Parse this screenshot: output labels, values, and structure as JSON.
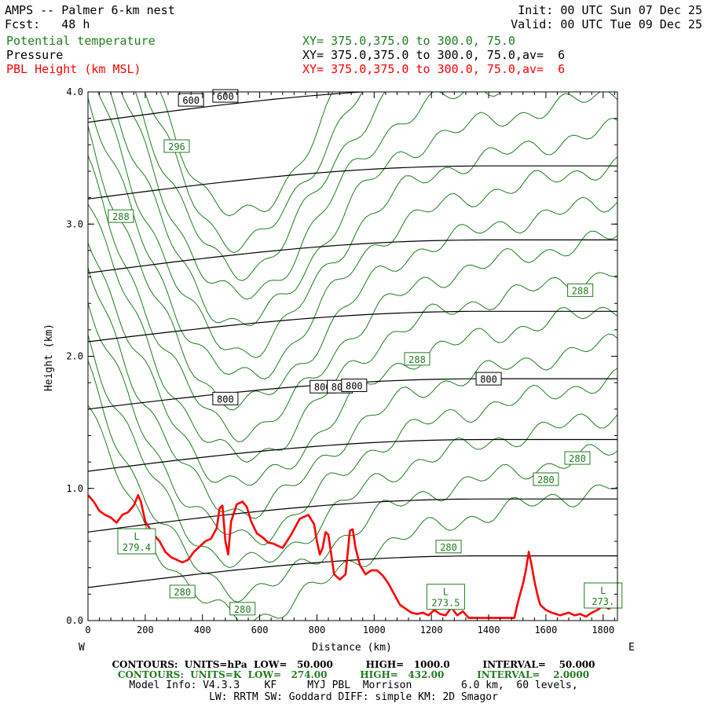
{
  "header": {
    "title": "AMPS -- Palmer 6-km nest",
    "fcst": "Fcst:   48 h",
    "init": "Init: 00 UTC Sun 07 Dec 25",
    "valid": "Valid: 00 UTC Tue 09 Dec 25",
    "fields": [
      {
        "name": "Potential temperature",
        "xy": "XY= 375.0,375.0 to 300.0, 75.0",
        "color": "#1e7d1e"
      },
      {
        "name": "Pressure",
        "xy": "XY= 375.0,375.0 to 300.0, 75.0,av=  6",
        "color": "#000000"
      },
      {
        "name": "PBL Height (km MSL)",
        "xy": "XY= 375.0,375.0 to 300.0, 75.0,av=  6",
        "color": "#ff0000"
      }
    ]
  },
  "chart_data": {
    "type": "line",
    "title": "AMPS -- Palmer 6-km nest",
    "xlabel": "Distance (km)",
    "ylabel": "Height (km)",
    "xlim": [
      0,
      1850
    ],
    "ylim": [
      0,
      4.0
    ],
    "x_ticks": [
      0,
      200,
      400,
      600,
      800,
      1000,
      1200,
      1400,
      1600,
      1800
    ],
    "x_tick_labels": [
      "0",
      "200",
      "400",
      "600",
      "800",
      "1000",
      "1200",
      "1400",
      "1600",
      "1800"
    ],
    "y_ticks": [
      0,
      1.0,
      2.0,
      3.0,
      4.0
    ],
    "y_tick_labels": [
      "0.0",
      "1.0",
      "2.0",
      "3.0",
      "4.0"
    ],
    "left_end_label": "W",
    "right_end_label": "E",
    "pbl_height": {
      "name": "PBL Height (km MSL)",
      "color": "#ff0000",
      "x": [
        0,
        20,
        40,
        60,
        80,
        100,
        120,
        140,
        160,
        175,
        185,
        200,
        215,
        230,
        250,
        270,
        290,
        310,
        330,
        350,
        370,
        390,
        410,
        430,
        450,
        460,
        470,
        480,
        490,
        500,
        520,
        540,
        555,
        570,
        590,
        610,
        630,
        650,
        680,
        710,
        740,
        770,
        790,
        800,
        810,
        820,
        830,
        840,
        860,
        880,
        900,
        915,
        925,
        935,
        950,
        970,
        990,
        1010,
        1030,
        1050,
        1070,
        1090,
        1110,
        1130,
        1150,
        1170,
        1190,
        1210,
        1230,
        1250,
        1270,
        1290,
        1310,
        1330,
        1350,
        1380,
        1420,
        1460,
        1490,
        1500,
        1510,
        1520,
        1530,
        1540,
        1550,
        1560,
        1570,
        1580,
        1600,
        1620,
        1650,
        1680,
        1700,
        1720,
        1740,
        1760,
        1780,
        1800,
        1820,
        1840,
        1850
      ],
      "y": [
        0.95,
        0.9,
        0.83,
        0.8,
        0.78,
        0.74,
        0.8,
        0.82,
        0.87,
        0.95,
        0.9,
        0.75,
        0.7,
        0.65,
        0.6,
        0.52,
        0.48,
        0.46,
        0.44,
        0.46,
        0.52,
        0.56,
        0.6,
        0.62,
        0.7,
        0.85,
        0.87,
        0.6,
        0.5,
        0.75,
        0.88,
        0.9,
        0.86,
        0.75,
        0.66,
        0.63,
        0.59,
        0.58,
        0.55,
        0.65,
        0.77,
        0.8,
        0.73,
        0.6,
        0.5,
        0.55,
        0.67,
        0.65,
        0.35,
        0.31,
        0.35,
        0.68,
        0.69,
        0.55,
        0.42,
        0.35,
        0.38,
        0.38,
        0.34,
        0.28,
        0.2,
        0.12,
        0.09,
        0.06,
        0.05,
        0.06,
        0.04,
        0.08,
        0.05,
        0.04,
        0.1,
        0.04,
        0.07,
        0.02,
        0.02,
        0.02,
        0.02,
        0.02,
        0.02,
        0.12,
        0.2,
        0.28,
        0.38,
        0.52,
        0.42,
        0.3,
        0.2,
        0.12,
        0.08,
        0.06,
        0.04,
        0.06,
        0.04,
        0.05,
        0.03,
        0.06,
        0.08,
        0.11,
        0.09,
        0.12,
        0.1
      ]
    },
    "pressure": {
      "name": "Pressure",
      "units": "hPa",
      "color": "#000000",
      "levels": [
        {
          "y0": 3.77,
          "y1": 4.03,
          "label": "600",
          "label_positions": [
            [
              360,
              3.94
            ],
            [
              480,
              3.97
            ]
          ]
        },
        {
          "y0": 3.19,
          "y1": 3.44,
          "label": "",
          "label_positions": []
        },
        {
          "y0": 2.63,
          "y1": 2.88,
          "label": "",
          "label_positions": []
        },
        {
          "y0": 2.11,
          "y1": 2.34,
          "label": "",
          "label_positions": []
        },
        {
          "y0": 1.6,
          "y1": 1.83,
          "label": "800",
          "label_positions": [
            [
              480,
              1.68
            ],
            [
              820,
              1.77
            ],
            [
              880,
              1.77
            ],
            [
              930,
              1.78
            ],
            [
              1400,
              1.83
            ]
          ]
        },
        {
          "y0": 1.13,
          "y1": 1.37,
          "label": "",
          "label_positions": []
        },
        {
          "y0": 0.67,
          "y1": 0.92,
          "label": "",
          "label_positions": []
        },
        {
          "y0": 0.25,
          "y1": 0.49,
          "label": "",
          "label_positions": []
        }
      ]
    },
    "theta_labels": [
      {
        "label": "296",
        "x": 310,
        "y": 3.59
      },
      {
        "label": "288",
        "x": 115,
        "y": 3.06
      },
      {
        "label": "288",
        "x": 1720,
        "y": 2.5
      },
      {
        "label": "288",
        "x": 1150,
        "y": 1.98
      },
      {
        "label": "280",
        "x": 1710,
        "y": 1.23
      },
      {
        "label": "280",
        "x": 1600,
        "y": 1.07
      },
      {
        "label": "280",
        "x": 1260,
        "y": 0.56
      },
      {
        "label": "280",
        "x": 330,
        "y": 0.22
      },
      {
        "label": "280",
        "x": 540,
        "y": 0.09
      },
      {
        "label": "L",
        "x": 170,
        "y": 0.6,
        "value": "279.4"
      },
      {
        "label": "L",
        "x": 1250,
        "y": 0.18,
        "value": "273.5"
      },
      {
        "label": "L",
        "x": 1800,
        "y": 0.19,
        "value": "273."
      }
    ]
  },
  "footer": {
    "pressure_contours": "CONTOURS:  UNITS=hPa  LOW=   50.000          HIGH=   1000.0          INTERVAL=    50.000",
    "theta_contours": "CONTOURS:  UNITS=K  LOW=   274.00          HIGH=   432.00          INTERVAL=    2.0000",
    "model_info": "Model Info: V4.3.3    KF     MYJ PBL  Morrison        6.0 km,  60 levels,",
    "model_info2": "LW: RRTM SW: Goddard DIFF: simple KM: 2D Smagor"
  }
}
